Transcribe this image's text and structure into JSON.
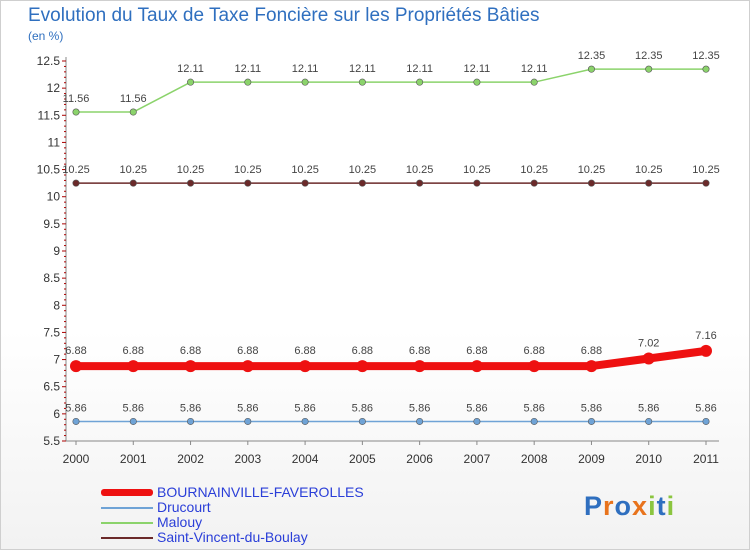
{
  "title": "Evolution du Taux de Taxe Foncière sur les Propriétés Bâties",
  "unit_label": "(en %)",
  "chart_data": {
    "type": "line",
    "title": "Evolution du Taux de Taxe Foncière sur les Propriétés Bâties",
    "ylabel": "(en %)",
    "xlabel": "",
    "ylim": [
      5.5,
      12.5
    ],
    "yticks": [
      "5.5",
      "6",
      "6.5",
      "7",
      "7.5",
      "8",
      "8.5",
      "9",
      "9.5",
      "10",
      "10.5",
      "11",
      "11.5",
      "12",
      "12.5"
    ],
    "x": [
      "2000",
      "2001",
      "2002",
      "2003",
      "2004",
      "2005",
      "2006",
      "2007",
      "2008",
      "2009",
      "2010",
      "2011"
    ],
    "series": [
      {
        "name": "Malouy",
        "color": "#8bd36b",
        "values": [
          11.56,
          11.56,
          12.11,
          12.11,
          12.11,
          12.11,
          12.11,
          12.11,
          12.11,
          12.35,
          12.35,
          12.35
        ],
        "labels": [
          "11.56",
          "11.56",
          "12.11",
          "12.11",
          "12.11",
          "12.11",
          "12.11",
          "12.11",
          "12.11",
          "12.35",
          "12.35",
          "12.35"
        ]
      },
      {
        "name": "Saint-Vincent-du-Boulay",
        "color": "#6b2a2a",
        "values": [
          10.25,
          10.25,
          10.25,
          10.25,
          10.25,
          10.25,
          10.25,
          10.25,
          10.25,
          10.25,
          10.25,
          10.25
        ],
        "labels": [
          "10.25",
          "10.25",
          "10.25",
          "10.25",
          "10.25",
          "10.25",
          "10.25",
          "10.25",
          "10.25",
          "10.25",
          "10.25",
          "10.25"
        ]
      },
      {
        "name": "BOURNAINVILLE-FAVEROLLES",
        "color": "#ee1111",
        "values": [
          6.88,
          6.88,
          6.88,
          6.88,
          6.88,
          6.88,
          6.88,
          6.88,
          6.88,
          6.88,
          7.02,
          7.16
        ],
        "labels": [
          "6.88",
          "6.88",
          "6.88",
          "6.88",
          "6.88",
          "6.88",
          "6.88",
          "6.88",
          "6.88",
          "6.88",
          "7.02",
          "7.16"
        ]
      },
      {
        "name": "Drucourt",
        "color": "#6fa3d6",
        "values": [
          5.86,
          5.86,
          5.86,
          5.86,
          5.86,
          5.86,
          5.86,
          5.86,
          5.86,
          5.86,
          5.86,
          5.86
        ],
        "labels": [
          "5.86",
          "5.86",
          "5.86",
          "5.86",
          "5.86",
          "5.86",
          "5.86",
          "5.86",
          "5.86",
          "5.86",
          "5.86",
          "5.86"
        ]
      }
    ]
  },
  "legend": [
    {
      "label": "BOURNAINVILLE-FAVEROLLES",
      "color": "#ee1111"
    },
    {
      "label": "Drucourt",
      "color": "#6fa3d6"
    },
    {
      "label": "Malouy",
      "color": "#8bd36b"
    },
    {
      "label": "Saint-Vincent-du-Boulay",
      "color": "#6b2a2a"
    }
  ],
  "logo": {
    "text": "Proxiti",
    "colors": [
      "#2f6fbf",
      "#e8731c",
      "#2f6fbf",
      "#e8731c",
      "#8bc53f",
      "#2f6fbf",
      "#8bc53f"
    ]
  }
}
